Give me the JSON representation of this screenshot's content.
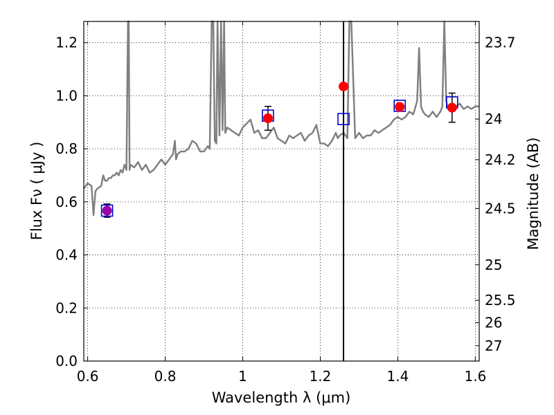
{
  "chart_data": {
    "type": "line",
    "xlabel": "Wavelength  λ (μm)",
    "ylabel": "Flux  Fν  ( μJy )",
    "y2label": "Magnitude (AB)",
    "xlim": [
      0.59,
      1.61
    ],
    "ylim": [
      0.0,
      1.28
    ],
    "grid": true,
    "x_ticks": [
      0.6,
      0.8,
      1.0,
      1.2,
      1.4,
      1.6
    ],
    "x_tick_labels": [
      "0.6",
      "0.8",
      "1",
      "1.2",
      "1.4",
      "1.6"
    ],
    "y_ticks": [
      0.0,
      0.2,
      0.4,
      0.6,
      0.8,
      1.0,
      1.2
    ],
    "y_tick_labels": [
      "0.0",
      "0.2",
      "0.4",
      "0.6",
      "0.8",
      "1.0",
      "1.2"
    ],
    "mag_ticks": [
      {
        "label": "23.7",
        "flux": 1.2
      },
      {
        "label": "24",
        "flux": 0.912
      },
      {
        "label": "24.2",
        "flux": 0.759
      },
      {
        "label": "24.5",
        "flux": 0.575
      },
      {
        "label": "25",
        "flux": 0.363
      },
      {
        "label": "25.5",
        "flux": 0.229
      },
      {
        "label": "26",
        "flux": 0.145
      },
      {
        "label": "27",
        "flux": 0.058
      }
    ],
    "vertical_line_x": 1.26,
    "colors": {
      "spectrum": "#808080",
      "observed": "#ff0000",
      "model": "#0000cc",
      "blend": "#9900aa",
      "errorbar": "#000000",
      "vline": "#000000"
    },
    "spectrum": {
      "x": [
        0.59,
        0.6,
        0.61,
        0.615,
        0.62,
        0.625,
        0.635,
        0.64,
        0.645,
        0.65,
        0.655,
        0.66,
        0.665,
        0.67,
        0.675,
        0.68,
        0.685,
        0.69,
        0.695,
        0.7,
        0.704,
        0.706,
        0.708,
        0.71,
        0.72,
        0.73,
        0.74,
        0.75,
        0.76,
        0.77,
        0.78,
        0.79,
        0.8,
        0.81,
        0.82,
        0.825,
        0.828,
        0.832,
        0.84,
        0.85,
        0.86,
        0.87,
        0.88,
        0.89,
        0.9,
        0.91,
        0.915,
        0.92,
        0.924,
        0.928,
        0.932,
        0.935,
        0.94,
        0.944,
        0.948,
        0.952,
        0.955,
        0.96,
        0.97,
        0.98,
        0.99,
        1.0,
        1.02,
        1.03,
        1.04,
        1.05,
        1.06,
        1.07,
        1.08,
        1.09,
        1.1,
        1.11,
        1.12,
        1.13,
        1.14,
        1.15,
        1.16,
        1.17,
        1.18,
        1.19,
        1.2,
        1.21,
        1.22,
        1.23,
        1.24,
        1.245,
        1.25,
        1.26,
        1.27,
        1.275,
        1.28,
        1.29,
        1.3,
        1.31,
        1.32,
        1.33,
        1.34,
        1.35,
        1.36,
        1.37,
        1.38,
        1.39,
        1.4,
        1.41,
        1.42,
        1.43,
        1.44,
        1.45,
        1.455,
        1.46,
        1.465,
        1.47,
        1.48,
        1.49,
        1.5,
        1.51,
        1.515,
        1.52,
        1.525,
        1.53,
        1.54,
        1.55,
        1.56,
        1.57,
        1.58,
        1.59,
        1.6,
        1.61
      ],
      "y": [
        0.65,
        0.67,
        0.66,
        0.55,
        0.64,
        0.65,
        0.66,
        0.7,
        0.68,
        0.68,
        0.69,
        0.69,
        0.7,
        0.7,
        0.71,
        0.7,
        0.72,
        0.71,
        0.74,
        0.72,
        1.3,
        1.3,
        0.72,
        0.74,
        0.73,
        0.75,
        0.72,
        0.74,
        0.71,
        0.72,
        0.74,
        0.76,
        0.74,
        0.76,
        0.78,
        0.83,
        0.76,
        0.78,
        0.79,
        0.79,
        0.8,
        0.83,
        0.82,
        0.79,
        0.79,
        0.81,
        0.8,
        1.3,
        1.3,
        0.83,
        0.82,
        1.3,
        0.85,
        1.3,
        0.87,
        1.3,
        0.86,
        0.88,
        0.87,
        0.86,
        0.85,
        0.88,
        0.91,
        0.86,
        0.87,
        0.84,
        0.84,
        0.86,
        0.88,
        0.84,
        0.83,
        0.82,
        0.85,
        0.84,
        0.85,
        0.86,
        0.83,
        0.85,
        0.86,
        0.89,
        0.82,
        0.82,
        0.81,
        0.83,
        0.86,
        0.84,
        0.85,
        0.86,
        0.84,
        1.3,
        1.3,
        0.84,
        0.86,
        0.84,
        0.85,
        0.85,
        0.87,
        0.86,
        0.87,
        0.88,
        0.89,
        0.91,
        0.92,
        0.91,
        0.92,
        0.94,
        0.93,
        0.98,
        1.18,
        0.96,
        0.94,
        0.93,
        0.92,
        0.94,
        0.92,
        0.94,
        0.96,
        1.3,
        0.98,
        0.95,
        0.95,
        0.96,
        0.97,
        0.95,
        0.96,
        0.95,
        0.96,
        0.96
      ]
    },
    "points": [
      {
        "x": 0.65,
        "model": 0.567,
        "observed": 0.567,
        "err": 0.025,
        "blend": true
      },
      {
        "x": 1.065,
        "model": 0.925,
        "observed": 0.915,
        "err": 0.045,
        "blend": false
      },
      {
        "x": 1.26,
        "model": 0.912,
        "observed": 1.035,
        "err": null,
        "blend": false
      },
      {
        "x": 1.405,
        "model": 0.962,
        "observed": 0.958,
        "err": null,
        "blend": false
      },
      {
        "x": 1.54,
        "model": 0.975,
        "observed": 0.955,
        "err": 0.055,
        "blend": false
      }
    ]
  }
}
